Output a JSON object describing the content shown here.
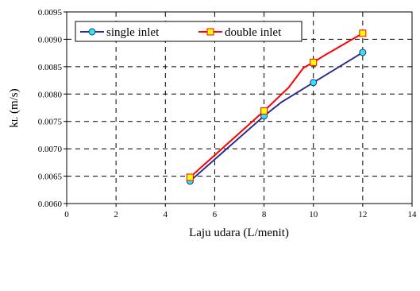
{
  "chart_data": {
    "type": "line",
    "xlabel": "Laju udara (L/menit)",
    "ylabel_main": "k",
    "ylabel_sub": "L",
    "ylabel_unit": "(m/s)",
    "xlim": [
      0,
      14
    ],
    "ylim": [
      0.006,
      0.0095
    ],
    "x_ticks": [
      "0",
      "2",
      "4",
      "6",
      "8",
      "10",
      "12",
      "14"
    ],
    "y_ticks": [
      "0.0060",
      "0.0065",
      "0.0070",
      "0.0075",
      "0.0080",
      "0.0085",
      "0.0090",
      "0.0095"
    ],
    "grid": true,
    "legend_position": "top-left",
    "series": [
      {
        "name": "single inlet",
        "color": "#2b2e8c",
        "marker": "circle",
        "marker_color": "#2ee8f0",
        "x": [
          5,
          8,
          10,
          12
        ],
        "y": [
          0.00641,
          0.0076,
          0.00821,
          0.00876
        ],
        "line": [
          [
            5,
            0.00641
          ],
          [
            8,
            0.0076
          ],
          [
            8.7,
            0.00785
          ],
          [
            10,
            0.00821
          ],
          [
            12,
            0.00876
          ]
        ]
      },
      {
        "name": "double inlet",
        "color": "#ff0000",
        "marker": "square",
        "marker_color": "#ffff00",
        "x": [
          5,
          8,
          10,
          12
        ],
        "y": [
          0.00648,
          0.00769,
          0.00858,
          0.00911
        ],
        "line": [
          [
            5,
            0.00648
          ],
          [
            8,
            0.00769
          ],
          [
            9,
            0.00812
          ],
          [
            9.6,
            0.00848
          ],
          [
            10,
            0.00858
          ],
          [
            10.5,
            0.00872
          ],
          [
            12,
            0.00911
          ]
        ]
      }
    ]
  }
}
